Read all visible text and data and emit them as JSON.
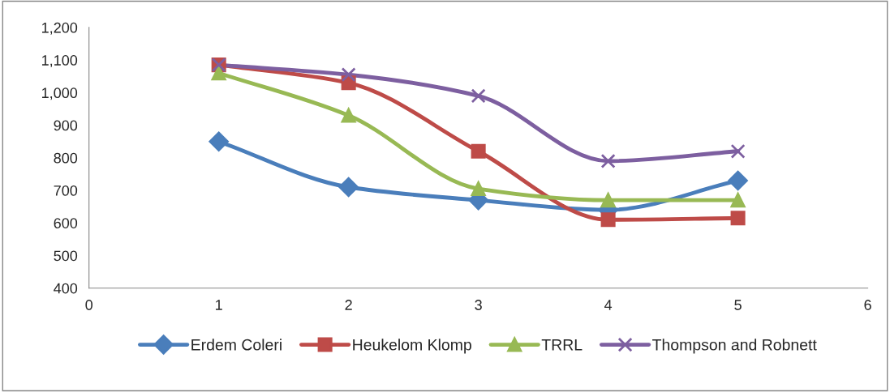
{
  "chart_data": {
    "type": "line",
    "x": [
      1,
      2,
      3,
      4,
      5
    ],
    "series": [
      {
        "name": "Erdem Coleri",
        "color": "#4a7ebb",
        "marker": "diamond",
        "values": [
          850,
          710,
          670,
          640,
          730
        ]
      },
      {
        "name": "Heukelom Klomp",
        "color": "#be4b48",
        "marker": "square",
        "values": [
          1085,
          1030,
          820,
          610,
          615
        ]
      },
      {
        "name": "TRRL",
        "color": "#98b954",
        "marker": "triangle",
        "values": [
          1060,
          930,
          705,
          670,
          670
        ]
      },
      {
        "name": "Thompson and Robnett",
        "color": "#7d5fa0",
        "marker": "cross",
        "values": [
          1085,
          1055,
          990,
          790,
          820
        ]
      }
    ],
    "xlim": [
      0,
      6
    ],
    "xticks": [
      0,
      1,
      2,
      3,
      4,
      5,
      6
    ],
    "ylim": [
      400,
      1200
    ],
    "yticks": [
      400,
      500,
      600,
      700,
      800,
      900,
      {
        "value": 1000,
        "label": "1,000"
      },
      {
        "value": 1100,
        "label": "1,100"
      },
      {
        "value": 1200,
        "label": "1,200"
      }
    ],
    "grid": false,
    "legend": "bottom",
    "line_style": "solid"
  }
}
